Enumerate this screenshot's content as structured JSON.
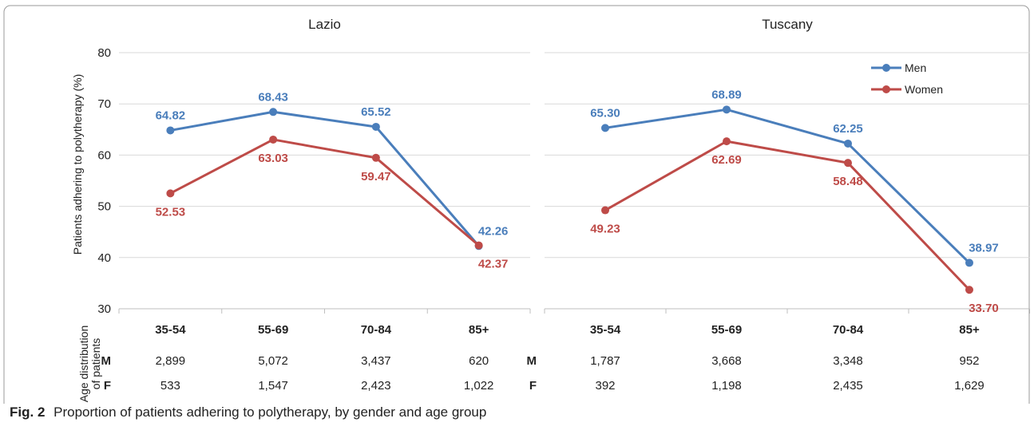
{
  "caption": {
    "label": "Fig. 2",
    "text": "Proportion of patients adhering to polytherapy, by gender and age group"
  },
  "y_axis_label": "Patients adhering to polytherapy (%)",
  "table_label": "Age distribution of patients",
  "row_labels": [
    "M",
    "F"
  ],
  "legend": [
    "Men",
    "Women"
  ],
  "colors": {
    "men": "#4a7ebb",
    "women": "#be4b48",
    "grid": "#d9d9d9",
    "axis": "#bfbfbf"
  },
  "chart_data": [
    {
      "type": "line",
      "title": "Lazio",
      "categories": [
        "35-54",
        "55-69",
        "70-84",
        "85+"
      ],
      "ylim": [
        30,
        80
      ],
      "yticks": [
        30,
        40,
        50,
        60,
        70,
        80
      ],
      "grid": true,
      "legend_position": "",
      "series": [
        {
          "name": "Men",
          "values": [
            64.82,
            68.43,
            65.52,
            42.26
          ],
          "labels": [
            "64.82",
            "68.43",
            "65.52",
            "42.26"
          ]
        },
        {
          "name": "Women",
          "values": [
            52.53,
            63.03,
            59.47,
            42.37
          ],
          "labels": [
            "52.53",
            "63.03",
            "59.47",
            "42.37"
          ]
        }
      ],
      "table": {
        "M": [
          "2,899",
          "5,072",
          "3,437",
          "620"
        ],
        "F": [
          "533",
          "1,547",
          "2,423",
          "1,022"
        ]
      }
    },
    {
      "type": "line",
      "title": "Tuscany",
      "categories": [
        "35-54",
        "55-69",
        "70-84",
        "85+"
      ],
      "ylim": [
        30,
        80
      ],
      "yticks": [
        30,
        40,
        50,
        60,
        70,
        80
      ],
      "grid": true,
      "legend_position": "top-right",
      "series": [
        {
          "name": "Men",
          "values": [
            65.3,
            68.89,
            62.25,
            38.97
          ],
          "labels": [
            "65.30",
            "68.89",
            "62.25",
            "38.97"
          ]
        },
        {
          "name": "Women",
          "values": [
            49.23,
            62.69,
            58.48,
            33.7
          ],
          "labels": [
            "49.23",
            "62.69",
            "58.48",
            "33.70"
          ]
        }
      ],
      "table": {
        "M": [
          "1,787",
          "3,668",
          "3,348",
          "952"
        ],
        "F": [
          "392",
          "1,198",
          "2,435",
          "1,629"
        ]
      }
    }
  ]
}
